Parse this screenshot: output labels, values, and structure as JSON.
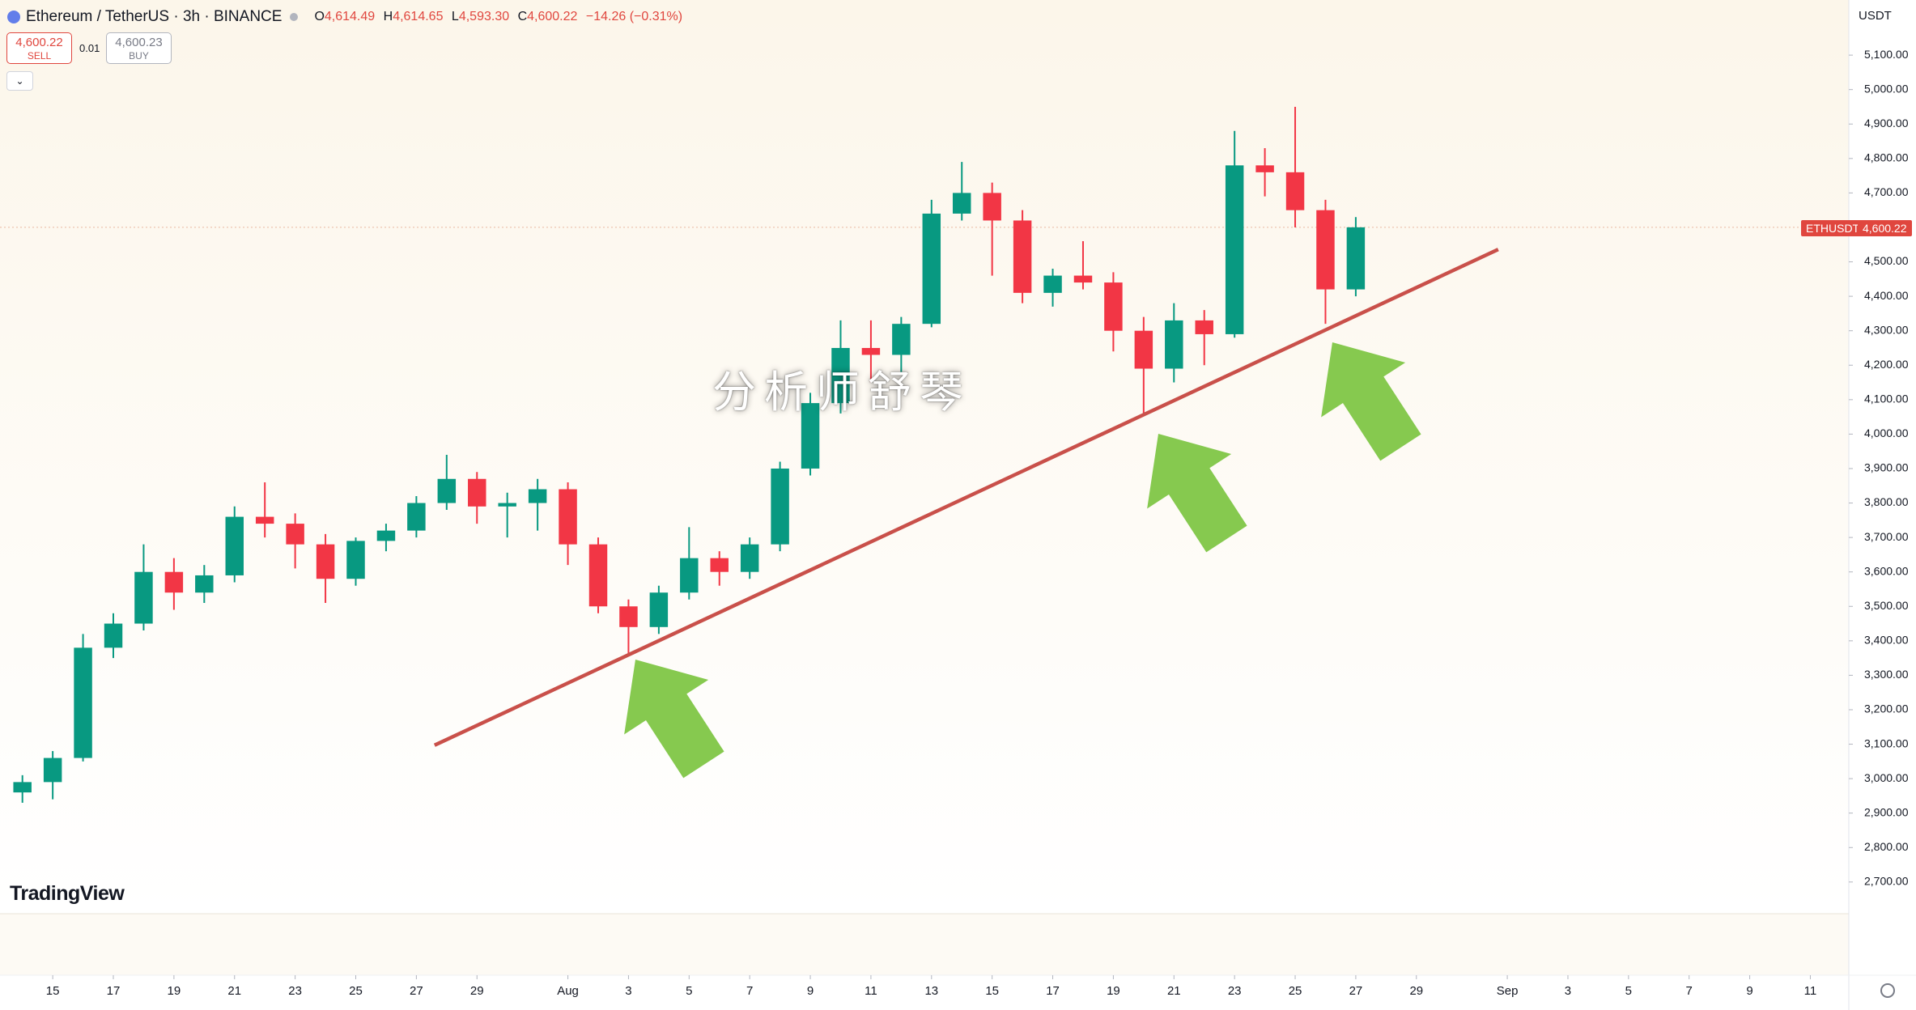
{
  "ui": {
    "symbol": "Ethereum / TetherUS · 3h · BINANCE",
    "ohlc": [
      {
        "key": "O",
        "value": "4,614.49"
      },
      {
        "key": "H",
        "value": "4,614.65"
      },
      {
        "key": "L",
        "value": "4,593.30"
      },
      {
        "key": "C",
        "value": "4,600.22"
      }
    ],
    "change": "−14.26 (−0.31%)",
    "sell": {
      "price": "4,600.22",
      "label": "SELL"
    },
    "spread": "0.01",
    "buy": {
      "price": "4,600.23",
      "label": "BUY"
    },
    "currency": "USDT",
    "price_tag": {
      "symbol": "ETHUSDT",
      "price": "4,600.22"
    },
    "watermark": "分析师舒琴",
    "logo": "TradingView"
  },
  "chart_data": {
    "type": "candlestick",
    "x": [
      14,
      15,
      16,
      17,
      18,
      19,
      20,
      21,
      22,
      23,
      24,
      25,
      26,
      27,
      28,
      29,
      30,
      31,
      32,
      33,
      34,
      35,
      36,
      37,
      38,
      39,
      40,
      41,
      42,
      43,
      44,
      45,
      46,
      47,
      48,
      49,
      50,
      51,
      52,
      53,
      54,
      55,
      56,
      57,
      58
    ],
    "open": [
      2960,
      2990,
      3060,
      3380,
      3450,
      3600,
      3540,
      3590,
      3760,
      3740,
      3680,
      3580,
      3690,
      3720,
      3800,
      3870,
      3790,
      3800,
      3840,
      3680,
      3500,
      3440,
      3540,
      3640,
      3600,
      3680,
      3900,
      4090,
      4250,
      4230,
      4320,
      4640,
      4700,
      4620,
      4410,
      4460,
      4440,
      4300,
      4190,
      4330,
      4290,
      4780,
      4760,
      4650,
      4420
    ],
    "high": [
      3010,
      3080,
      3420,
      3480,
      3680,
      3640,
      3620,
      3790,
      3860,
      3770,
      3710,
      3700,
      3740,
      3820,
      3940,
      3890,
      3830,
      3870,
      3860,
      3700,
      3520,
      3560,
      3730,
      3660,
      3700,
      3920,
      4120,
      4330,
      4330,
      4340,
      4680,
      4790,
      4730,
      4650,
      4480,
      4560,
      4470,
      4340,
      4380,
      4360,
      4880,
      4830,
      4950,
      4680,
      4630
    ],
    "low": [
      2930,
      2940,
      3050,
      3350,
      3430,
      3490,
      3510,
      3570,
      3700,
      3610,
      3510,
      3560,
      3660,
      3700,
      3780,
      3740,
      3700,
      3720,
      3620,
      3480,
      3360,
      3420,
      3520,
      3560,
      3580,
      3660,
      3880,
      4060,
      4150,
      4180,
      4310,
      4620,
      4460,
      4380,
      4370,
      4420,
      4240,
      4060,
      4150,
      4200,
      4280,
      4690,
      4600,
      4320,
      4400
    ],
    "close": [
      2990,
      3060,
      3380,
      3450,
      3600,
      3540,
      3590,
      3760,
      3740,
      3680,
      3580,
      3690,
      3720,
      3800,
      3870,
      3790,
      3800,
      3840,
      3680,
      3500,
      3440,
      3540,
      3640,
      3600,
      3680,
      3900,
      4090,
      4250,
      4230,
      4320,
      4640,
      4700,
      4620,
      4410,
      4460,
      4440,
      4300,
      4190,
      4330,
      4290,
      4780,
      4760,
      4650,
      4420,
      4600.22
    ],
    "up_color": "#089981",
    "down_color": "#f23645",
    "last_price": 4600.22,
    "trendline": {
      "x": [
        27.6,
        62.7
      ],
      "y": [
        3097,
        4536
      ],
      "color": "#c9504a"
    },
    "xlim": [
      13.26,
      74.27
    ],
    "ylim": [
      2608,
      5260
    ],
    "xticks": [
      {
        "value": 15,
        "label": "15"
      },
      {
        "value": 17,
        "label": "17"
      },
      {
        "value": 19,
        "label": "19"
      },
      {
        "value": 21,
        "label": "21"
      },
      {
        "value": 23,
        "label": "23"
      },
      {
        "value": 25,
        "label": "25"
      },
      {
        "value": 27,
        "label": "27"
      },
      {
        "value": 29,
        "label": "29"
      },
      {
        "value": 32,
        "label": "Aug"
      },
      {
        "value": 34,
        "label": "3"
      },
      {
        "value": 36,
        "label": "5"
      },
      {
        "value": 38,
        "label": "7"
      },
      {
        "value": 40,
        "label": "9"
      },
      {
        "value": 42,
        "label": "11"
      },
      {
        "value": 44,
        "label": "13"
      },
      {
        "value": 46,
        "label": "15"
      },
      {
        "value": 48,
        "label": "17"
      },
      {
        "value": 50,
        "label": "19"
      },
      {
        "value": 52,
        "label": "21"
      },
      {
        "value": 54,
        "label": "23"
      },
      {
        "value": 56,
        "label": "25"
      },
      {
        "value": 58,
        "label": "27"
      },
      {
        "value": 60,
        "label": "29"
      },
      {
        "value": 63,
        "label": "Sep"
      },
      {
        "value": 65,
        "label": "3"
      },
      {
        "value": 67,
        "label": "5"
      },
      {
        "value": 69,
        "label": "7"
      },
      {
        "value": 71,
        "label": "9"
      },
      {
        "value": 73,
        "label": "11"
      }
    ],
    "yticks": [
      {
        "value": 2700,
        "label": "2,700.00"
      },
      {
        "value": 2800,
        "label": "2,800.00"
      },
      {
        "value": 2900,
        "label": "2,900.00"
      },
      {
        "value": 3000,
        "label": "3,000.00"
      },
      {
        "value": 3100,
        "label": "3,100.00"
      },
      {
        "value": 3200,
        "label": "3,200.00"
      },
      {
        "value": 3300,
        "label": "3,300.00"
      },
      {
        "value": 3400,
        "label": "3,400.00"
      },
      {
        "value": 3500,
        "label": "3,500.00"
      },
      {
        "value": 3600,
        "label": "3,600.00"
      },
      {
        "value": 3700,
        "label": "3,700.00"
      },
      {
        "value": 3800,
        "label": "3,800.00"
      },
      {
        "value": 3900,
        "label": "3,900.00"
      },
      {
        "value": 4000,
        "label": "4,000.00"
      },
      {
        "value": 4100,
        "label": "4,100.00"
      },
      {
        "value": 4200,
        "label": "4,200.00"
      },
      {
        "value": 4300,
        "label": "4,300.00"
      },
      {
        "value": 4400,
        "label": "4,400.00"
      },
      {
        "value": 4500,
        "label": "4,500.00"
      },
      {
        "value": 4600,
        "label": "4,600.00"
      },
      {
        "value": 4700,
        "label": "4,700.00"
      },
      {
        "value": 4800,
        "label": "4,800.00"
      },
      {
        "value": 4900,
        "label": "4,900.00"
      },
      {
        "value": 5000,
        "label": "5,000.00"
      },
      {
        "value": 5100,
        "label": "5,100.00"
      }
    ]
  }
}
